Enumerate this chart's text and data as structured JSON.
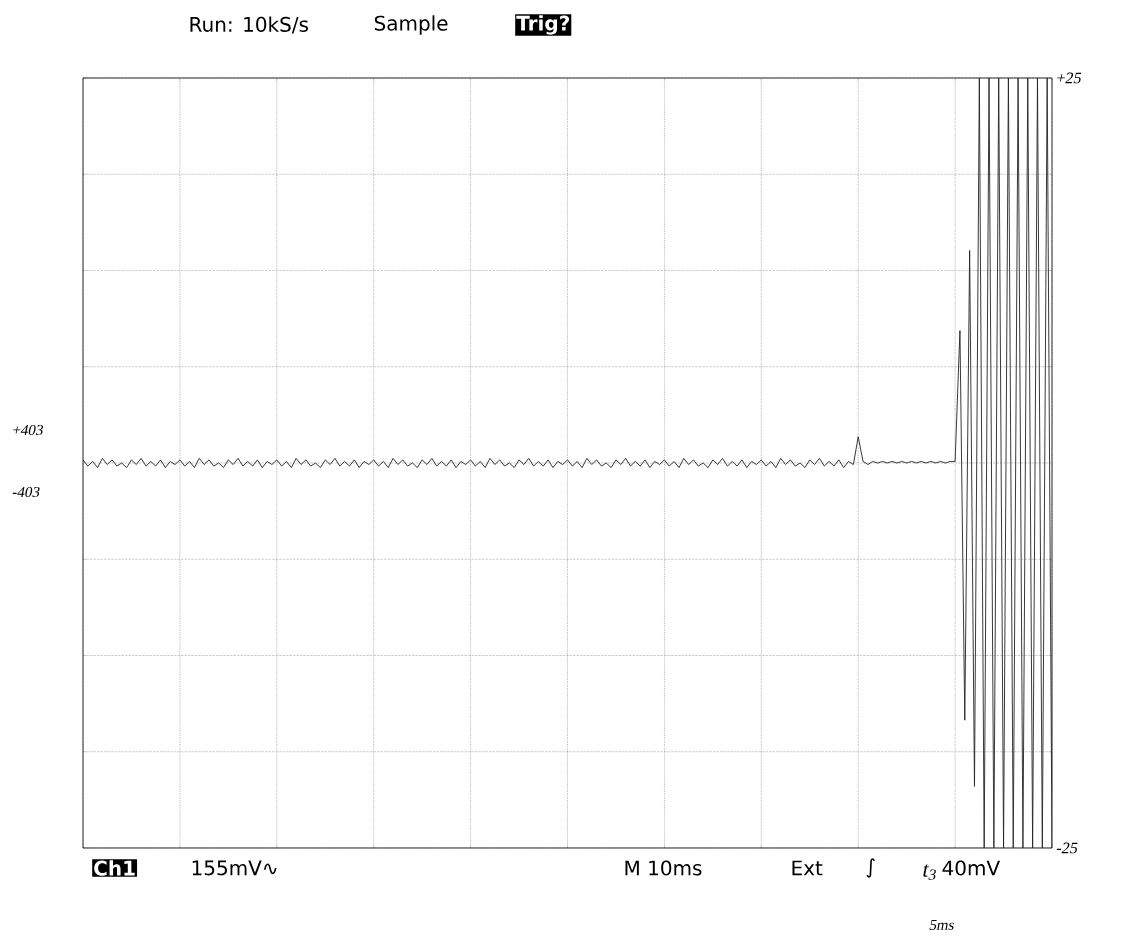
{
  "chart_data": {
    "type": "line",
    "title": "Run: 10kS/s",
    "annotations": [
      "Sample",
      "Trig?",
      "Ch1",
      "155mV∿",
      "M  10ms",
      "Ext",
      "∫",
      "t$_{3}$",
      "40mV",
      "+403",
      "-403",
      "5ms"
    ],
    "categories": [
      null,
      null,
      null,
      null,
      null,
      null,
      null,
      null,
      null,
      null,
      null,
      null,
      null,
      null,
      null,
      null,
      null,
      null,
      null,
      null,
      null,
      null,
      null,
      null,
      null,
      null,
      null,
      null,
      null,
      null,
      null,
      null,
      null,
      null,
      null,
      null,
      null,
      null,
      null,
      null,
      null,
      null,
      null,
      null,
      null,
      null,
      null,
      null,
      null,
      null,
      null,
      null,
      null,
      null,
      null,
      null,
      null,
      null,
      null,
      null,
      null,
      null,
      null,
      null,
      null,
      null,
      null,
      null,
      null,
      null,
      null,
      null,
      null,
      null,
      null,
      null,
      null,
      null,
      null,
      null,
      null,
      null,
      null,
      null,
      null,
      null,
      null,
      null,
      null,
      null,
      null,
      null,
      null,
      null,
      null,
      null,
      null,
      null,
      null,
      null,
      null,
      null,
      null,
      null,
      null,
      null,
      null,
      null,
      null,
      null,
      null,
      null,
      null,
      null,
      null,
      null,
      null,
      null,
      null,
      null,
      null,
      null,
      null,
      null,
      null,
      null,
      null,
      null,
      null,
      null,
      null,
      null,
      null,
      null,
      null,
      null,
      null,
      null,
      null,
      null,
      null,
      null,
      null,
      null,
      null,
      null,
      null,
      null,
      null,
      null,
      null,
      null,
      null,
      null,
      null,
      null,
      null,
      null,
      null,
      null,
      null,
      null,
      null,
      null,
      null,
      null,
      null,
      null,
      null,
      null,
      null,
      null,
      null,
      null,
      null,
      null,
      null,
      null,
      null,
      null,
      null,
      null,
      null,
      null,
      null,
      null,
      null,
      null,
      null,
      null,
      null,
      null,
      null,
      null,
      null,
      null,
      null,
      null,
      null,
      null,
      null
    ],
    "ylim": [
      -25,
      25
    ],
    "yticks": [
      {
        "value": -25,
        "label": "-25"
      },
      {
        "value": -18.75,
        "label": null
      },
      {
        "value": -12.5,
        "label": null
      },
      {
        "value": -6.25,
        "label": null
      },
      {
        "value": 0,
        "label": null
      },
      {
        "value": 6.25,
        "label": null
      },
      {
        "value": 12.5,
        "label": null
      },
      {
        "value": 18.75,
        "label": null
      },
      {
        "value": 25,
        "label": "+25"
      }
    ],
    "tick_labels": "y",
    "grid": true,
    "marker": "none",
    "line_style": "solid",
    "series": [
      {
        "color": "#222222",
        "values": [
          0.2,
          -0.2,
          0.1,
          -0.3,
          0.3,
          -0.1,
          0.2,
          -0.2,
          0,
          -0.3,
          0.2,
          -0.1,
          0.3,
          -0.2,
          0.1,
          -0.2,
          0.2,
          -0.3,
          0.1,
          -0.1,
          0.2,
          -0.2,
          0.1,
          -0.3,
          0.3,
          -0.1,
          0.2,
          -0.2,
          0,
          -0.3,
          0.2,
          -0.1,
          0.3,
          -0.2,
          0.1,
          -0.2,
          0.2,
          -0.3,
          0.1,
          -0.1,
          0.2,
          -0.2,
          0.1,
          -0.3,
          0.3,
          -0.1,
          0.2,
          -0.2,
          0,
          -0.3,
          0.2,
          -0.1,
          0.3,
          -0.2,
          0.1,
          -0.2,
          0.2,
          -0.3,
          0.1,
          -0.1,
          0.2,
          -0.2,
          0.1,
          -0.3,
          0.3,
          -0.1,
          0.2,
          -0.2,
          0,
          -0.3,
          0.2,
          -0.1,
          0.3,
          -0.2,
          0.1,
          -0.2,
          0.2,
          -0.3,
          0.1,
          -0.1,
          0.2,
          -0.2,
          0.1,
          -0.3,
          0.3,
          -0.1,
          0.2,
          -0.2,
          0,
          -0.3,
          0.2,
          -0.1,
          0.3,
          -0.2,
          0.1,
          -0.2,
          0.2,
          -0.3,
          0.1,
          -0.1,
          0.2,
          -0.2,
          0.1,
          -0.3,
          0.3,
          -0.1,
          0.2,
          -0.2,
          0,
          -0.3,
          0.2,
          -0.1,
          0.3,
          -0.2,
          0.1,
          -0.2,
          0.2,
          -0.3,
          0.1,
          -0.1,
          0.2,
          -0.2,
          0.1,
          -0.3,
          0.3,
          -0.1,
          0.2,
          -0.2,
          0,
          -0.3,
          0.2,
          -0.1,
          0.3,
          -0.2,
          0.1,
          -0.2,
          0.2,
          -0.3,
          0.1,
          -0.1,
          0.2,
          -0.2,
          0.1,
          -0.3,
          0.3,
          -0.1,
          0.2,
          -0.2,
          0,
          -0.3,
          0.2,
          -0.1,
          0.3,
          -0.2,
          0.1,
          -0.2,
          0.2,
          -0.3,
          0.1,
          -0.1,
          1.7,
          0.1,
          -0.1,
          0.1,
          0,
          0.1,
          0,
          0.1,
          0,
          0.1,
          0,
          0.1,
          0,
          0.1,
          0,
          0.1,
          0,
          0.1,
          0,
          0.1,
          0.1,
          8.6,
          -16.7,
          13.8,
          -21,
          25,
          -25,
          25,
          -25,
          25,
          -25,
          25,
          -25,
          25,
          -25,
          25,
          -25,
          25,
          -25,
          25,
          -25
        ]
      }
    ]
  }
}
